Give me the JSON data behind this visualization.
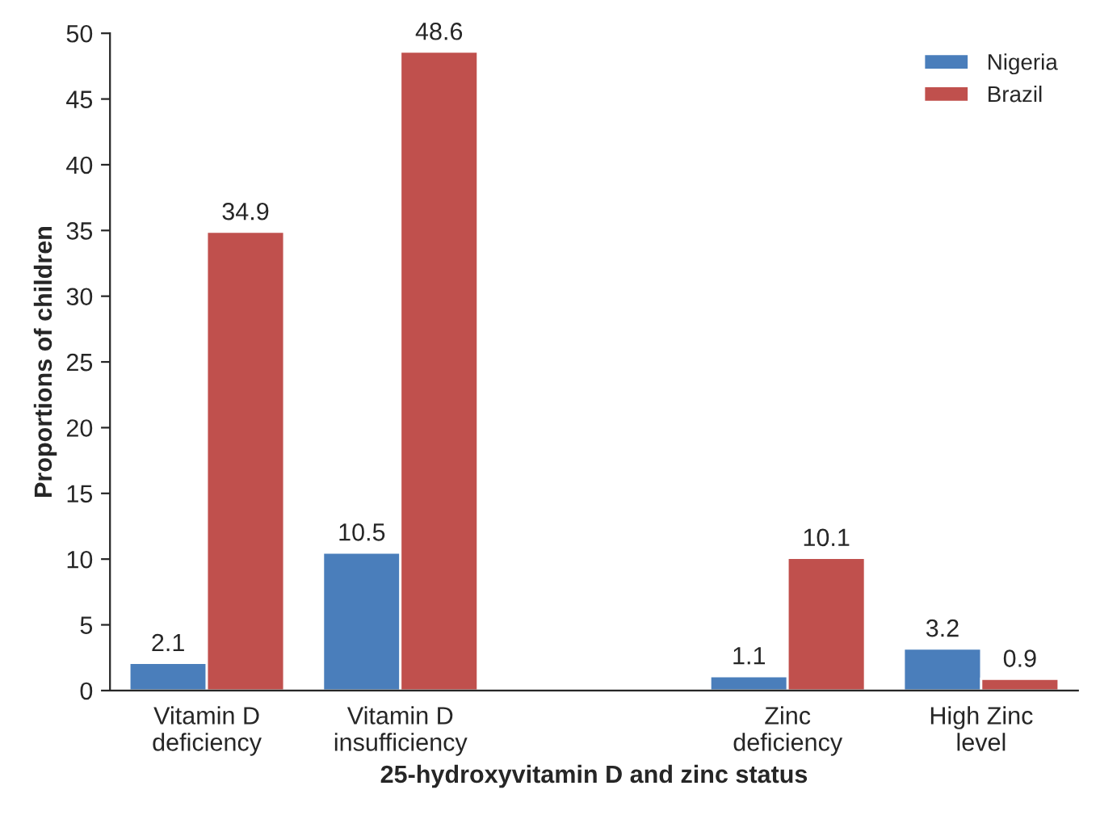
{
  "chart_data": {
    "type": "bar",
    "xlabel": "25-hydroxyvitamin D and zinc status",
    "ylabel": "Proportions of children",
    "categories": [
      "Vitamin D\ndeficiency",
      "Vitamin D\ninsufficiency",
      null,
      "Zinc\ndeficiency",
      "High Zinc\nlevel"
    ],
    "series": [
      {
        "name": "Nigeria",
        "color": "#4a7ebb",
        "values": [
          2.1,
          10.5,
          null,
          1.1,
          3.2
        ]
      },
      {
        "name": "Brazil",
        "color": "#c0504d",
        "values": [
          34.9,
          48.6,
          null,
          10.1,
          0.9
        ]
      }
    ],
    "ylim": [
      0,
      50
    ],
    "yticks": [
      0,
      5,
      10,
      15,
      20,
      25,
      30,
      35,
      40,
      45,
      50
    ],
    "data_labels": true,
    "grid": false,
    "legend": "top right"
  }
}
